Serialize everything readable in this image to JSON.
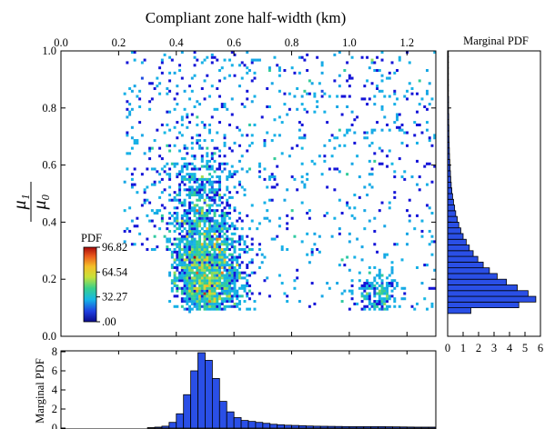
{
  "chart_data": [
    {
      "type": "heatmap",
      "id": "main",
      "title": "Compliant zone half-width (km)",
      "xlabel": "Compliant zone half-width (km)",
      "ylabel_num": "μ₁",
      "ylabel_den": "μ₀",
      "xlim": [
        0.0,
        1.3
      ],
      "ylim": [
        0.0,
        1.0
      ],
      "x_ticks": [
        "0.0",
        "0.2",
        "0.4",
        "0.6",
        "0.8",
        "1.0",
        "1.2"
      ],
      "y_ticks": [
        "0.0",
        "0.2",
        "0.4",
        "0.6",
        "0.8",
        "1.0"
      ],
      "colorbar": {
        "label": "PDF",
        "ticks": [
          "96.82",
          "64.54",
          "32.27",
          ".00"
        ],
        "min": 0.0,
        "max": 96.82
      },
      "density_peak": {
        "x": 0.5,
        "y": 0.14,
        "value": 96.82
      },
      "clusters": [
        {
          "x_center": 0.51,
          "y_center": 0.2,
          "x_spread": 0.06,
          "y_spread": 0.09,
          "weight": 0.45
        },
        {
          "x_center": 0.48,
          "y_center": 0.4,
          "x_spread": 0.06,
          "y_spread": 0.14,
          "weight": 0.25
        },
        {
          "x_center": 1.1,
          "y_center": 0.15,
          "x_spread": 0.035,
          "y_spread": 0.035,
          "weight": 0.05
        },
        {
          "x_center": 0.85,
          "y_center": 0.55,
          "x_spread": 0.3,
          "y_spread": 0.3,
          "weight": 0.25
        }
      ]
    },
    {
      "type": "bar",
      "id": "marginal_y",
      "title": "Marginal PDF",
      "orientation": "horizontal",
      "xlim": [
        0,
        6
      ],
      "x_ticks": [
        "0",
        "1",
        "2",
        "3",
        "4",
        "5",
        "6"
      ],
      "bin_width": 0.02,
      "bin_starts": [
        0.08,
        0.1,
        0.12,
        0.14,
        0.16,
        0.18,
        0.2,
        0.22,
        0.24,
        0.26,
        0.28,
        0.3,
        0.32,
        0.34,
        0.36,
        0.38,
        0.4,
        0.42,
        0.44,
        0.46,
        0.48,
        0.5,
        0.52,
        0.54,
        0.56,
        0.58,
        0.6,
        0.62,
        0.64,
        0.66,
        0.68,
        0.7,
        0.72,
        0.74,
        0.76,
        0.78,
        0.8,
        0.82,
        0.84,
        0.86,
        0.88,
        0.9,
        0.92,
        0.94,
        0.96,
        0.98
      ],
      "values": [
        1.5,
        4.6,
        5.7,
        5.2,
        4.5,
        3.8,
        3.2,
        2.7,
        2.3,
        1.95,
        1.65,
        1.4,
        1.2,
        1.0,
        0.85,
        0.72,
        0.62,
        0.52,
        0.45,
        0.38,
        0.32,
        0.27,
        0.23,
        0.2,
        0.18,
        0.16,
        0.14,
        0.12,
        0.11,
        0.1,
        0.09,
        0.08,
        0.08,
        0.07,
        0.07,
        0.06,
        0.06,
        0.06,
        0.05,
        0.05,
        0.05,
        0.05,
        0.05,
        0.05,
        0.05,
        0.05
      ]
    },
    {
      "type": "bar",
      "id": "marginal_x",
      "ylabel": "Marginal PDF",
      "ylim": [
        0,
        8
      ],
      "y_ticks": [
        "0",
        "2",
        "4",
        "6",
        "8"
      ],
      "bin_width": 0.025,
      "bin_starts": [
        0.3,
        0.325,
        0.35,
        0.375,
        0.4,
        0.425,
        0.45,
        0.475,
        0.5,
        0.525,
        0.55,
        0.575,
        0.6,
        0.625,
        0.65,
        0.675,
        0.7,
        0.725,
        0.75,
        0.775,
        0.8,
        0.825,
        0.85,
        0.875,
        0.9,
        0.925,
        0.95,
        0.975,
        1.0,
        1.025,
        1.05,
        1.075,
        1.1,
        1.125,
        1.15,
        1.175,
        1.2,
        1.225,
        1.25,
        1.275
      ],
      "values": [
        0.05,
        0.1,
        0.2,
        0.6,
        1.5,
        3.5,
        6.0,
        7.9,
        7.1,
        5.2,
        2.8,
        1.7,
        1.1,
        0.8,
        0.7,
        0.6,
        0.5,
        0.4,
        0.35,
        0.3,
        0.28,
        0.25,
        0.22,
        0.2,
        0.19,
        0.18,
        0.17,
        0.16,
        0.15,
        0.15,
        0.15,
        0.15,
        0.15,
        0.14,
        0.13,
        0.12,
        0.11,
        0.1,
        0.1,
        0.1
      ]
    }
  ],
  "colors": {
    "bar_fill": "#2a4fe6",
    "bar_edge": "#000000",
    "scatter": "#1414d8",
    "colormap": [
      "#0b0b8a",
      "#1f3fe0",
      "#16b7e6",
      "#39d08a",
      "#c7e23a",
      "#f4c028",
      "#ea5a1c",
      "#a80a0a"
    ]
  }
}
